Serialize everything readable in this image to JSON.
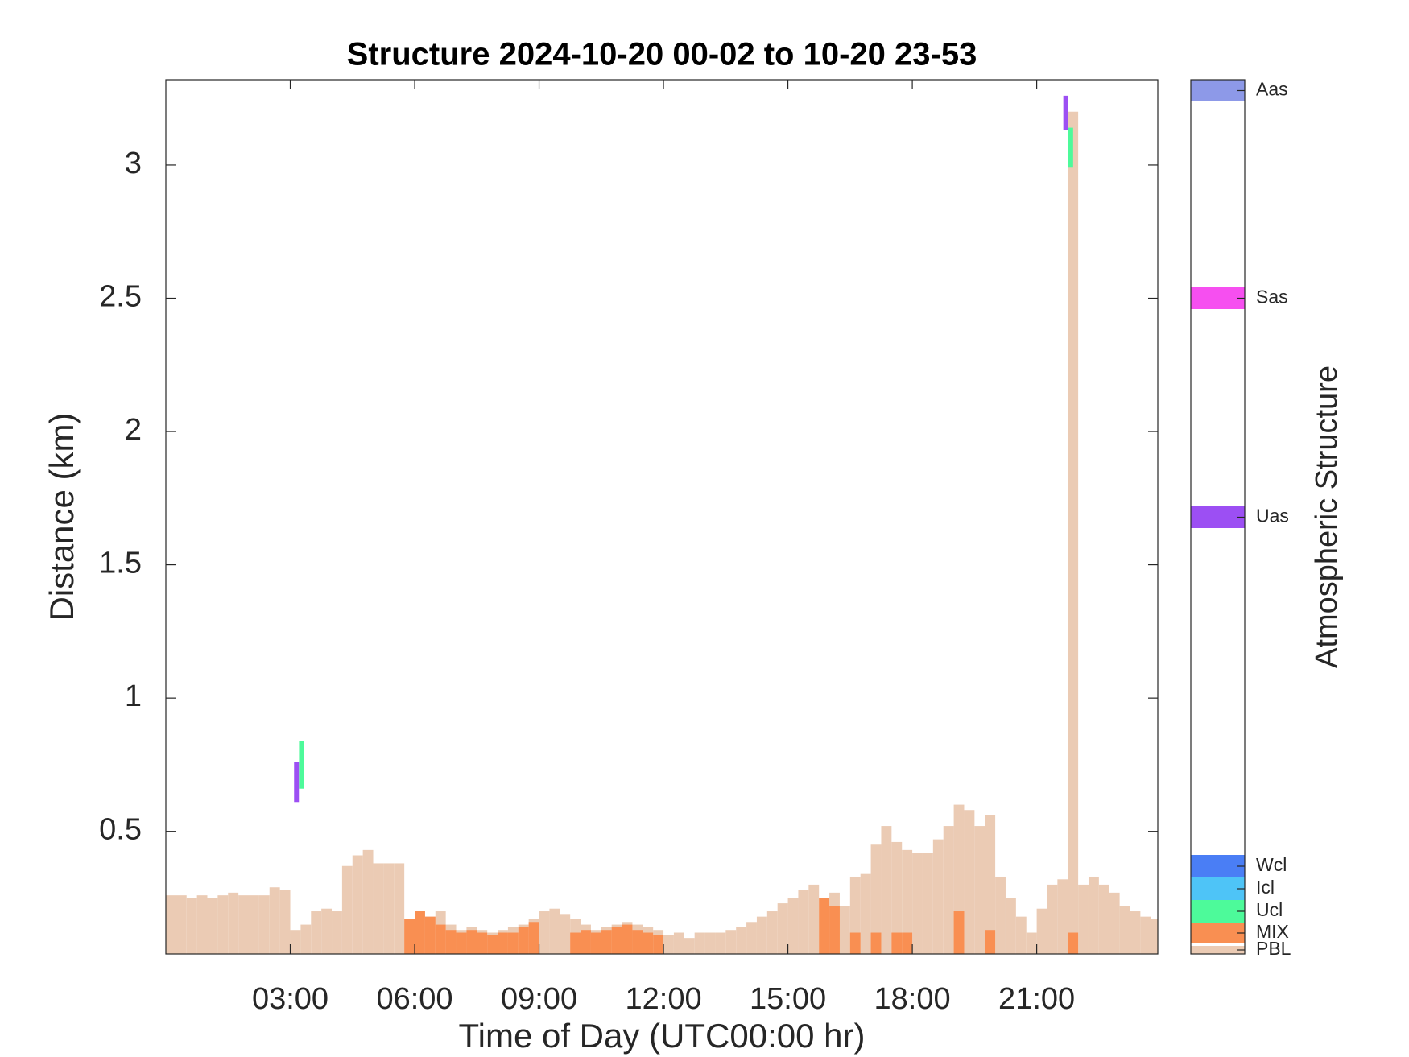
{
  "chart_data": {
    "type": "bar",
    "title": "Structure 2024-10-20 00-02 to 10-20 23-53",
    "x_label": "Time of Day (UTC00:00 hr)",
    "y_label": "Distance (km)",
    "colorbar_label": "Atmospheric Structure",
    "xlim": [
      0,
      23.92
    ],
    "ylim": [
      0.04,
      3.32
    ],
    "xticks": [
      {
        "value": 3,
        "label": "03:00"
      },
      {
        "value": 6,
        "label": "06:00"
      },
      {
        "value": 9,
        "label": "09:00"
      },
      {
        "value": 12,
        "label": "12:00"
      },
      {
        "value": 15,
        "label": "15:00"
      },
      {
        "value": 18,
        "label": "18:00"
      },
      {
        "value": 21,
        "label": "21:00"
      }
    ],
    "yticks": [
      0.5,
      1,
      1.5,
      2,
      2.5,
      3
    ],
    "x": [
      0,
      0.25,
      0.5,
      0.75,
      1,
      1.25,
      1.5,
      1.75,
      2,
      2.25,
      2.5,
      2.75,
      3,
      3.25,
      3.5,
      3.75,
      4,
      4.25,
      4.5,
      4.75,
      5,
      5.25,
      5.5,
      5.75,
      6,
      6.25,
      6.5,
      6.75,
      7,
      7.25,
      7.5,
      7.75,
      8,
      8.25,
      8.5,
      8.75,
      9,
      9.25,
      9.5,
      9.75,
      10,
      10.25,
      10.5,
      10.75,
      11,
      11.25,
      11.5,
      11.75,
      12,
      12.25,
      12.5,
      12.75,
      13,
      13.25,
      13.5,
      13.75,
      14,
      14.25,
      14.5,
      14.75,
      15,
      15.25,
      15.5,
      15.75,
      16,
      16.25,
      16.5,
      16.75,
      17,
      17.25,
      17.5,
      17.75,
      18,
      18.25,
      18.5,
      18.75,
      19,
      19.25,
      19.5,
      19.75,
      20,
      20.25,
      20.5,
      20.75,
      21,
      21.25,
      21.5,
      21.75,
      22,
      22.25,
      22.5,
      22.75,
      23,
      23.25,
      23.5,
      23.75
    ],
    "series": [
      {
        "name": "PBL",
        "color": "#ebcbb4",
        "values": [
          0.26,
          0.26,
          0.25,
          0.26,
          0.25,
          0.26,
          0.27,
          0.26,
          0.26,
          0.26,
          0.29,
          0.28,
          0.13,
          0.15,
          0.2,
          0.21,
          0.2,
          0.37,
          0.41,
          0.43,
          0.38,
          0.38,
          0.38,
          0.17,
          0.2,
          0.18,
          0.2,
          0.15,
          0.13,
          0.14,
          0.13,
          0.12,
          0.13,
          0.14,
          0.15,
          0.17,
          0.2,
          0.21,
          0.19,
          0.17,
          0.15,
          0.13,
          0.14,
          0.15,
          0.16,
          0.15,
          0.14,
          0.13,
          0.11,
          0.12,
          0.1,
          0.12,
          0.12,
          0.12,
          0.13,
          0.14,
          0.16,
          0.18,
          0.2,
          0.23,
          0.25,
          0.28,
          0.3,
          0.25,
          0.27,
          0.22,
          0.33,
          0.34,
          0.45,
          0.52,
          0.46,
          0.43,
          0.42,
          0.42,
          0.47,
          0.52,
          0.6,
          0.58,
          0.52,
          0.56,
          0.33,
          0.25,
          0.18,
          0.12,
          0.21,
          0.3,
          0.32,
          3.2,
          0.3,
          0.33,
          0.3,
          0.27,
          0.22,
          0.2,
          0.18,
          0.17
        ]
      },
      {
        "name": "MIX",
        "color": "#f98f52",
        "values": [
          null,
          null,
          null,
          null,
          null,
          null,
          null,
          null,
          null,
          null,
          null,
          null,
          null,
          null,
          null,
          null,
          null,
          null,
          null,
          null,
          null,
          null,
          null,
          0.17,
          0.2,
          0.18,
          0.15,
          0.13,
          0.12,
          0.13,
          0.12,
          0.11,
          0.12,
          0.12,
          0.14,
          0.16,
          null,
          null,
          null,
          0.12,
          0.13,
          0.12,
          0.13,
          0.14,
          0.15,
          0.13,
          0.12,
          0.11,
          null,
          null,
          null,
          null,
          null,
          null,
          null,
          null,
          null,
          null,
          null,
          null,
          null,
          null,
          null,
          0.25,
          0.22,
          null,
          0.12,
          null,
          0.12,
          null,
          0.12,
          0.12,
          null,
          null,
          null,
          null,
          0.2,
          null,
          null,
          0.13,
          null,
          null,
          null,
          null,
          null,
          null,
          null,
          0.12,
          null,
          null,
          null,
          null,
          null,
          null,
          null,
          null
        ]
      },
      {
        "name": "Ucl",
        "color": "#4dfa9a",
        "x": [
          3.27,
          21.82
        ],
        "base": [
          0.66,
          2.99
        ],
        "top": [
          0.84,
          3.14
        ]
      },
      {
        "name": "Icl",
        "color": "#4ec4f7"
      },
      {
        "name": "Wcl",
        "color": "#4a7ef5"
      },
      {
        "name": "Uas",
        "color": "#9c4ff3",
        "x": [
          3.15,
          21.7
        ],
        "base": [
          0.61,
          3.13
        ],
        "top": [
          0.76,
          3.26
        ]
      },
      {
        "name": "Sas",
        "color": "#f64ff0"
      },
      {
        "name": "Aas",
        "color": "#8d99e8"
      }
    ]
  }
}
